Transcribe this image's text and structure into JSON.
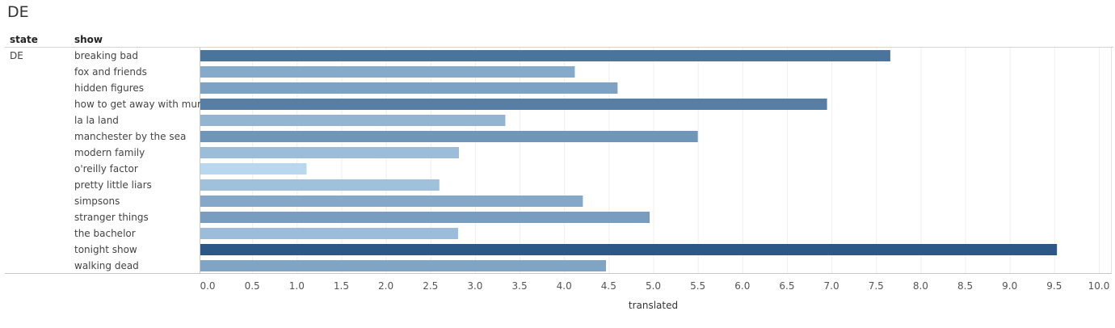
{
  "title": "DE",
  "headers": {
    "state": "state",
    "show": "show"
  },
  "state_value": "DE",
  "chart_data": {
    "type": "bar",
    "orientation": "horizontal",
    "categories": [
      "breaking bad",
      "fox and friends",
      "hidden figures",
      "how to get away with mur..",
      "la la land",
      "manchester by the sea",
      "modern family",
      "o'reilly factor",
      "pretty little liars",
      "simpsons",
      "stranger things",
      "the bachelor",
      "tonight show",
      "walking dead"
    ],
    "values": [
      7.66,
      4.12,
      4.6,
      6.95,
      3.34,
      5.5,
      2.82,
      1.11,
      2.6,
      4.21,
      4.96,
      2.81,
      9.53,
      4.47
    ],
    "xlabel": "translated",
    "ylabel": "",
    "xlim": [
      0,
      10
    ],
    "ticks": [
      "0.0",
      "0.5",
      "1.0",
      "1.5",
      "2.0",
      "2.5",
      "3.0",
      "3.5",
      "4.0",
      "4.5",
      "5.0",
      "5.5",
      "6.0",
      "6.5",
      "7.0",
      "7.5",
      "8.0",
      "8.5",
      "9.0",
      "9.5",
      "10.0"
    ],
    "color_scale": [
      "#b9d7ee",
      "#2b5886"
    ],
    "grid": true
  }
}
